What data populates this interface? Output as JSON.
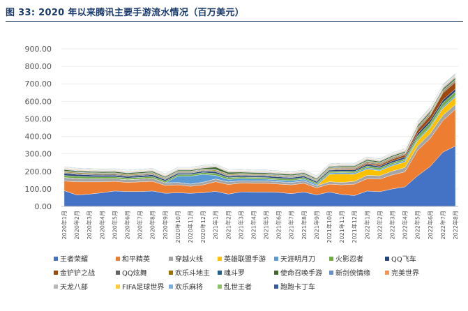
{
  "title": "图 33:  2020 年以来腾讯主要手游流水情况（百万美元）",
  "chart_data": {
    "type": "area",
    "stacked": true,
    "title": "图 33:  2020 年以来腾讯主要手游流水情况（百万美元）",
    "ylim": [
      0,
      900
    ],
    "yticks": [
      "0.00",
      "100.00",
      "200.00",
      "300.00",
      "400.00",
      "500.00",
      "600.00",
      "700.00",
      "800.00",
      "900.00"
    ],
    "ytick_values": [
      0,
      100,
      200,
      300,
      400,
      500,
      600,
      700,
      800,
      900
    ],
    "legend_position": "bottom",
    "categories": [
      "2020年1月",
      "2020年2月",
      "2020年3月",
      "2020年4月",
      "2020年5月",
      "2020年6月",
      "2020年7月",
      "2020年8月",
      "2020年9月",
      "2020年10月",
      "2020年11月",
      "2020年12月",
      "2021年1月",
      "2021年2月",
      "2021年3月",
      "2021年4月",
      "2021年5月",
      "2021年6月",
      "2021年7月",
      "2021年8月",
      "2021年9月",
      "2021年10月",
      "2021年11月",
      "2021年12月",
      "2022年1月",
      "2022年2月",
      "2022年3月",
      "2022年4月",
      "2022年5月",
      "2022年6月",
      "2022年7月",
      "2022年8月"
    ],
    "series": [
      {
        "name": "王者荣耀",
        "color": "#4472c4",
        "values": [
          90,
          65,
          70,
          78,
          88,
          85,
          85,
          88,
          75,
          78,
          75,
          78,
          86,
          70,
          83,
          82,
          82,
          80,
          73,
          82,
          66,
          82,
          68,
          62,
          88,
          84,
          100,
          112,
          175,
          228,
          310,
          345
        ]
      },
      {
        "name": "和平精英",
        "color": "#ed7d31",
        "values": [
          55,
          75,
          70,
          62,
          55,
          52,
          55,
          55,
          45,
          45,
          40,
          45,
          55,
          55,
          50,
          50,
          50,
          48,
          50,
          50,
          40,
          45,
          55,
          65,
          70,
          72,
          80,
          85,
          145,
          160,
          180,
          210
        ]
      },
      {
        "name": "穿越火线",
        "color": "#a5a5a5",
        "values": [
          20,
          20,
          18,
          18,
          16,
          15,
          16,
          18,
          15,
          14,
          13,
          15,
          16,
          15,
          14,
          14,
          14,
          13,
          14,
          14,
          12,
          14,
          14,
          16,
          20,
          19,
          22,
          25,
          25,
          28,
          30,
          28
        ]
      },
      {
        "name": "英雄联盟手游",
        "color": "#ffc000",
        "values": [
          0,
          0,
          0,
          0,
          0,
          0,
          0,
          0,
          0,
          0,
          0,
          0,
          0,
          0,
          0,
          0,
          0,
          0,
          0,
          0,
          0,
          42,
          48,
          40,
          35,
          28,
          30,
          32,
          30,
          34,
          40,
          42
        ]
      },
      {
        "name": "天涯明月刀",
        "color": "#5b9bd5",
        "values": [
          0,
          0,
          0,
          0,
          0,
          0,
          0,
          0,
          0,
          35,
          45,
          45,
          20,
          14,
          12,
          11,
          10,
          10,
          10,
          10,
          8,
          8,
          8,
          8,
          8,
          7,
          8,
          8,
          8,
          8,
          9,
          9
        ]
      },
      {
        "name": "火影忍者",
        "color": "#70ad47",
        "values": [
          12,
          12,
          11,
          10,
          10,
          10,
          10,
          10,
          9,
          9,
          9,
          10,
          11,
          10,
          9,
          9,
          9,
          9,
          9,
          9,
          8,
          8,
          8,
          9,
          10,
          10,
          10,
          10,
          20,
          20,
          22,
          22
        ]
      },
      {
        "name": "QQ飞车",
        "color": "#264478",
        "values": [
          12,
          11,
          11,
          10,
          10,
          9,
          10,
          10,
          9,
          9,
          8,
          9,
          10,
          9,
          9,
          9,
          9,
          9,
          9,
          9,
          8,
          8,
          8,
          8,
          9,
          9,
          10,
          10,
          14,
          15,
          16,
          16
        ]
      },
      {
        "name": "金铲铲之战",
        "color": "#9e480e",
        "values": [
          0,
          0,
          0,
          0,
          0,
          0,
          0,
          0,
          0,
          0,
          0,
          0,
          0,
          0,
          0,
          0,
          0,
          0,
          0,
          0,
          0,
          3,
          5,
          6,
          7,
          8,
          10,
          12,
          20,
          25,
          40,
          38
        ]
      },
      {
        "name": "QQ炫舞",
        "color": "#636363",
        "values": [
          5,
          5,
          5,
          5,
          5,
          5,
          5,
          5,
          4,
          4,
          4,
          4,
          5,
          4,
          4,
          4,
          4,
          4,
          4,
          4,
          4,
          4,
          4,
          4,
          5,
          5,
          5,
          5,
          6,
          6,
          6,
          6
        ]
      },
      {
        "name": "欢乐斗地主",
        "color": "#997300",
        "values": [
          5,
          5,
          5,
          5,
          5,
          5,
          5,
          5,
          4,
          4,
          4,
          4,
          5,
          5,
          4,
          4,
          4,
          4,
          4,
          4,
          4,
          4,
          4,
          4,
          5,
          5,
          5,
          5,
          6,
          6,
          6,
          6
        ]
      },
      {
        "name": "魂斗罗",
        "color": "#255e91",
        "values": [
          3,
          3,
          3,
          3,
          3,
          3,
          3,
          3,
          3,
          3,
          3,
          3,
          3,
          3,
          3,
          3,
          3,
          3,
          3,
          3,
          3,
          3,
          3,
          3,
          3,
          3,
          3,
          3,
          4,
          4,
          4,
          4
        ]
      },
      {
        "name": "使命召唤手游",
        "color": "#43682b",
        "values": [
          8,
          7,
          7,
          7,
          7,
          7,
          7,
          7,
          6,
          6,
          6,
          6,
          14,
          10,
          8,
          7,
          7,
          7,
          7,
          7,
          6,
          6,
          6,
          6,
          7,
          7,
          7,
          7,
          9,
          9,
          9,
          9
        ]
      },
      {
        "name": "新剑侠情缘",
        "color": "#698ed0",
        "values": [
          3,
          3,
          3,
          3,
          3,
          3,
          3,
          3,
          3,
          3,
          3,
          3,
          3,
          3,
          3,
          3,
          3,
          3,
          3,
          3,
          3,
          3,
          3,
          3,
          3,
          3,
          3,
          3,
          4,
          4,
          4,
          4
        ]
      },
      {
        "name": "完美世界",
        "color": "#f1975a",
        "values": [
          3,
          3,
          3,
          3,
          3,
          3,
          3,
          3,
          3,
          3,
          3,
          3,
          3,
          3,
          3,
          3,
          3,
          3,
          3,
          3,
          3,
          3,
          3,
          3,
          3,
          3,
          3,
          3,
          4,
          4,
          4,
          4
        ]
      },
      {
        "name": "天龙八部",
        "color": "#b7b7b7",
        "values": [
          3,
          3,
          3,
          3,
          3,
          3,
          3,
          3,
          3,
          3,
          3,
          3,
          3,
          3,
          3,
          3,
          3,
          3,
          3,
          3,
          3,
          3,
          3,
          3,
          3,
          3,
          3,
          3,
          4,
          4,
          4,
          4
        ]
      },
      {
        "name": "FIFA足球世界",
        "color": "#ffcd33",
        "values": [
          2,
          2,
          2,
          2,
          2,
          2,
          2,
          2,
          2,
          2,
          2,
          2,
          2,
          2,
          2,
          2,
          2,
          2,
          2,
          2,
          2,
          2,
          2,
          2,
          2,
          2,
          2,
          2,
          3,
          3,
          3,
          3
        ]
      },
      {
        "name": "欢乐麻将",
        "color": "#7cafdd",
        "values": [
          2,
          2,
          2,
          2,
          2,
          2,
          2,
          2,
          2,
          2,
          2,
          2,
          2,
          2,
          2,
          2,
          2,
          2,
          2,
          2,
          2,
          2,
          2,
          2,
          2,
          2,
          2,
          2,
          3,
          3,
          3,
          3
        ]
      },
      {
        "name": "乱世王者",
        "color": "#8cc168",
        "values": [
          2,
          2,
          2,
          2,
          2,
          2,
          2,
          2,
          2,
          2,
          2,
          2,
          2,
          2,
          2,
          2,
          2,
          2,
          2,
          2,
          2,
          2,
          2,
          2,
          2,
          2,
          2,
          2,
          3,
          3,
          3,
          3
        ]
      },
      {
        "name": "跑跑卡丁车",
        "color": "#335aa1",
        "values": [
          2,
          2,
          2,
          2,
          2,
          2,
          2,
          2,
          2,
          2,
          2,
          2,
          2,
          2,
          2,
          2,
          2,
          2,
          2,
          2,
          2,
          2,
          2,
          2,
          2,
          2,
          2,
          2,
          3,
          3,
          3,
          3
        ]
      }
    ]
  }
}
